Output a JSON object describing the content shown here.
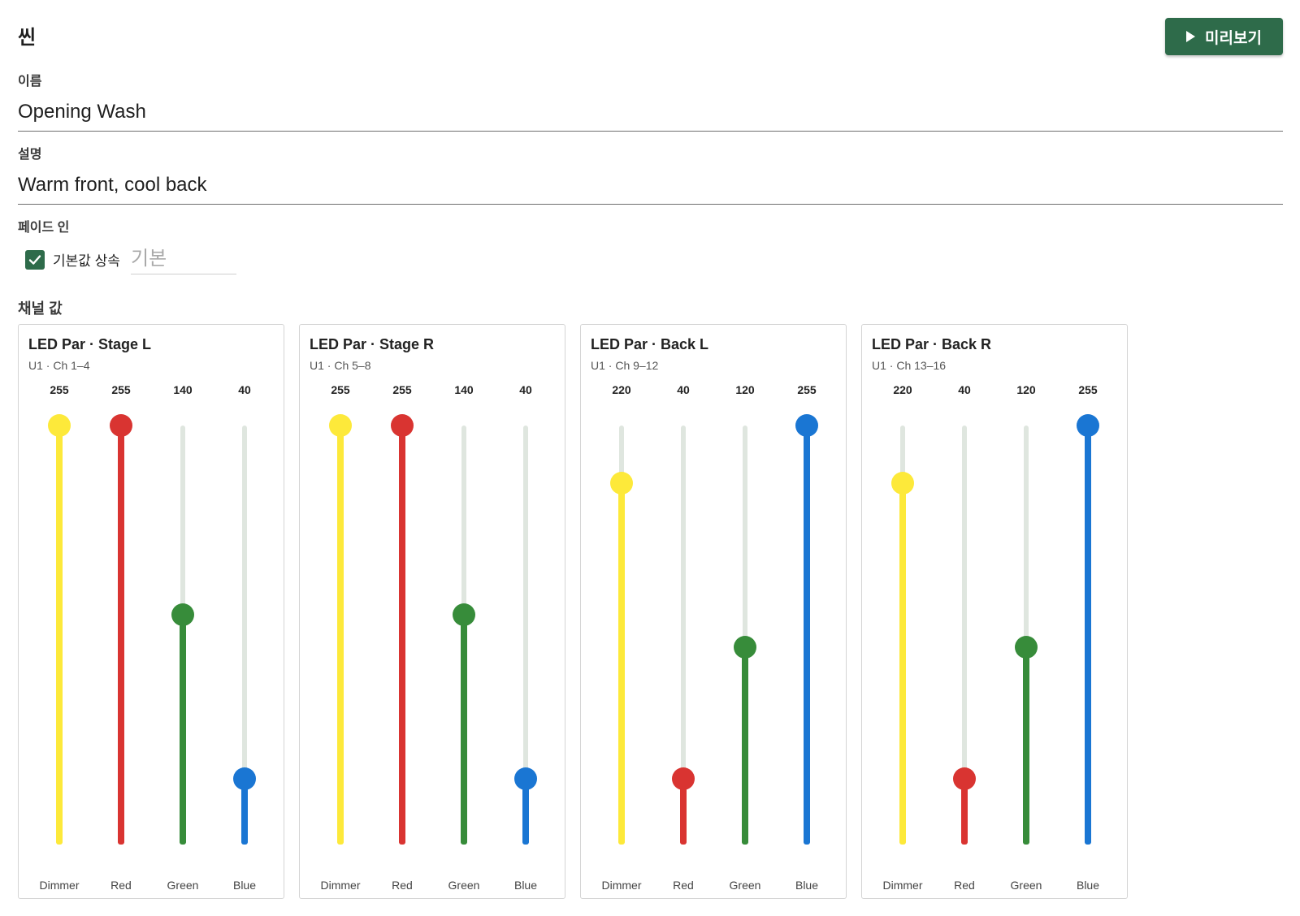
{
  "header": {
    "title": "씬",
    "preview_label": "미리보기"
  },
  "form": {
    "name_label": "이름",
    "name_value": "Opening Wash",
    "description_label": "설명",
    "description_value": "Warm front, cool back",
    "fade_label": "페이드 인",
    "inherit_label": "기본값 상속",
    "inherit_checked": true,
    "fade_placeholder": "기본"
  },
  "channels_label": "채널 값",
  "colors": {
    "accent": "#2e6b4a",
    "Dimmer": "#fde93a",
    "Red": "#d93431",
    "Green": "#378c3a",
    "Blue": "#1a76d3"
  },
  "fixtures": [
    {
      "name": "LED Par · Stage L",
      "address": "U1 · Ch 1–4",
      "channels": [
        {
          "name": "Dimmer",
          "value": 255
        },
        {
          "name": "Red",
          "value": 255
        },
        {
          "name": "Green",
          "value": 140
        },
        {
          "name": "Blue",
          "value": 40
        }
      ]
    },
    {
      "name": "LED Par · Stage R",
      "address": "U1 · Ch 5–8",
      "channels": [
        {
          "name": "Dimmer",
          "value": 255
        },
        {
          "name": "Red",
          "value": 255
        },
        {
          "name": "Green",
          "value": 140
        },
        {
          "name": "Blue",
          "value": 40
        }
      ]
    },
    {
      "name": "LED Par · Back L",
      "address": "U1 · Ch 9–12",
      "channels": [
        {
          "name": "Dimmer",
          "value": 220
        },
        {
          "name": "Red",
          "value": 40
        },
        {
          "name": "Green",
          "value": 120
        },
        {
          "name": "Blue",
          "value": 255
        }
      ]
    },
    {
      "name": "LED Par · Back R",
      "address": "U1 · Ch 13–16",
      "channels": [
        {
          "name": "Dimmer",
          "value": 220
        },
        {
          "name": "Red",
          "value": 40
        },
        {
          "name": "Green",
          "value": 120
        },
        {
          "name": "Blue",
          "value": 255
        }
      ]
    }
  ]
}
